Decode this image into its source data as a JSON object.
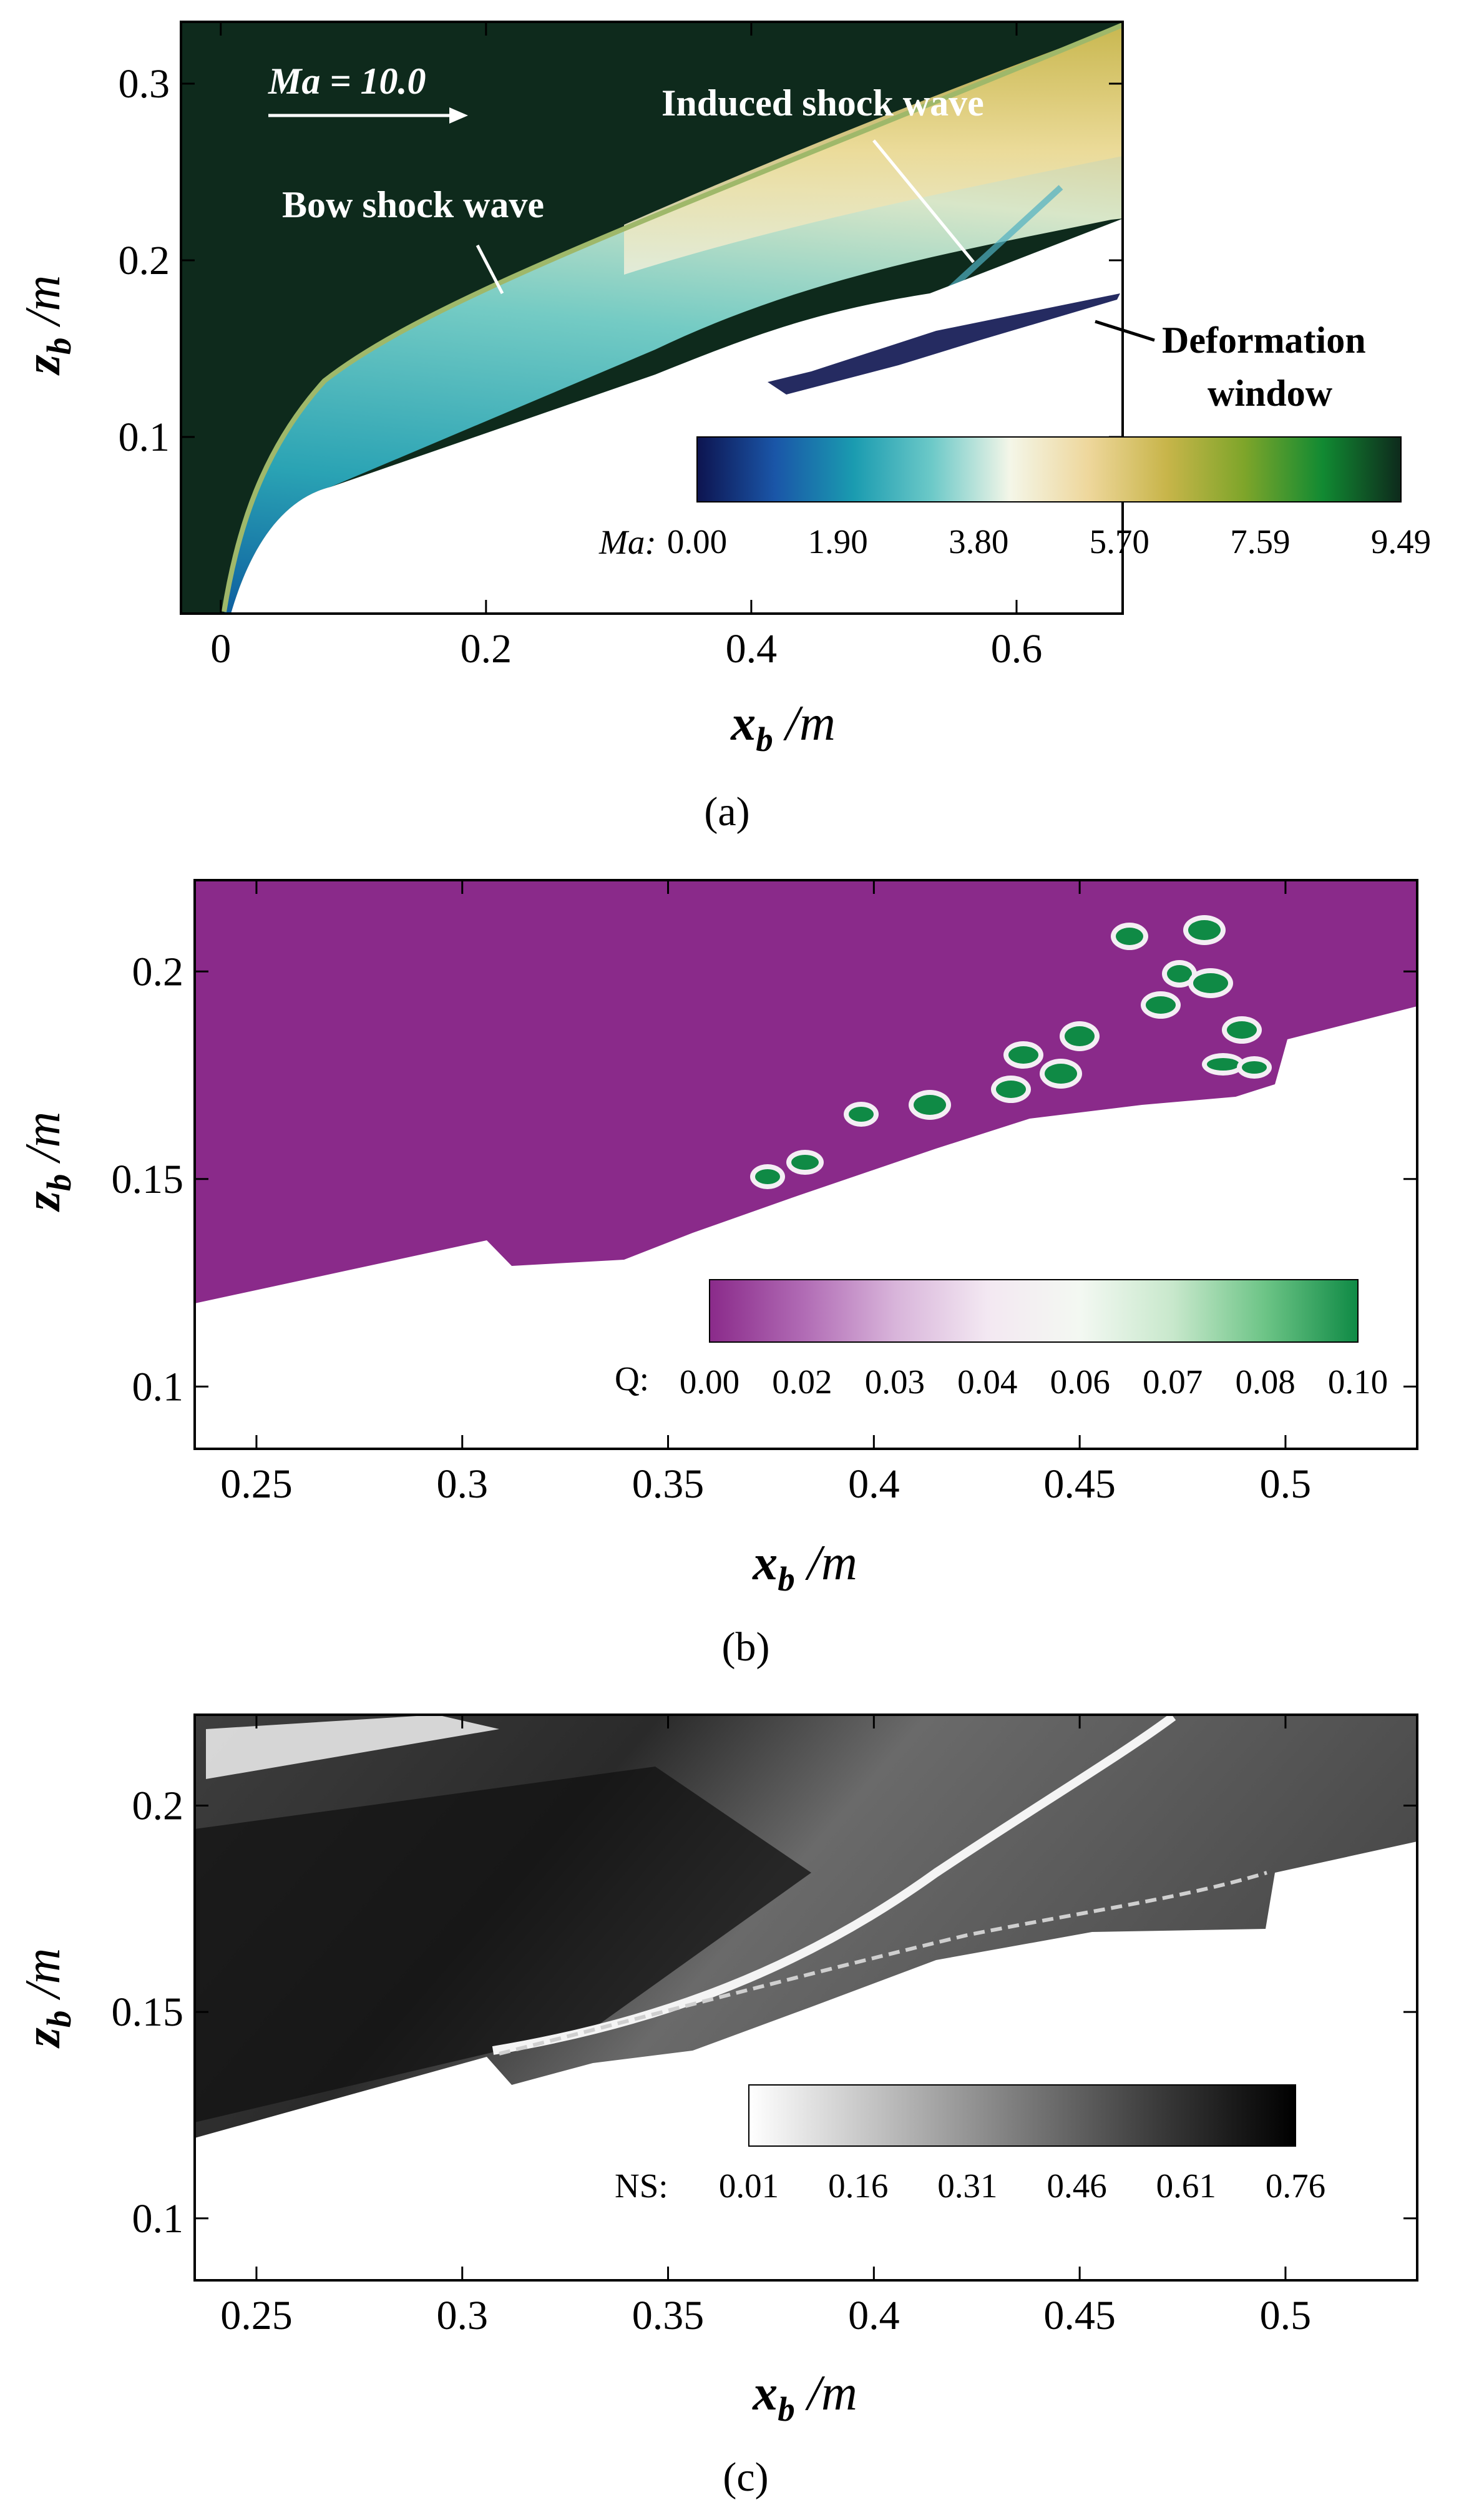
{
  "chart_data": [
    {
      "type": "heatmap",
      "panel_label": "(a)",
      "xlabel": "x",
      "xlabel_sub": "b",
      "xlabel_unit": " /m",
      "ylabel": "z",
      "ylabel_sub": "b",
      "ylabel_unit": " /m",
      "xlim": [
        -0.03,
        0.68
      ],
      "ylim": [
        0.0,
        0.335
      ],
      "xticks": [
        0,
        0.2,
        0.4,
        0.6
      ],
      "xtick_labels": [
        "0",
        "0.2",
        "0.4",
        "0.6"
      ],
      "yticks": [
        0.1,
        0.2,
        0.3
      ],
      "ytick_labels": [
        "0.1",
        "0.2",
        "0.3"
      ],
      "colorbar": {
        "variable": "Ma:",
        "ticks": [
          "0.00",
          "1.90",
          "3.80",
          "5.70",
          "7.59",
          "9.49"
        ],
        "colors": [
          "#0d1450",
          "#1a56a8",
          "#1a9bb0",
          "#6cc9c8",
          "#f4f6e8",
          "#eed79c",
          "#c8b54a",
          "#7ea52a",
          "#118a32",
          "#0e2a1c"
        ]
      },
      "annotations": [
        {
          "text": "Ma = 10.0",
          "x": 0.09,
          "y": 0.305
        },
        {
          "text": "Bow shock wave",
          "x": 0.14,
          "y": 0.225
        },
        {
          "text": "Induced shock wave",
          "x": 0.48,
          "y": 0.285
        },
        {
          "text": "Deformation",
          "x": 0.59,
          "y": 0.165
        },
        {
          "text": "window",
          "x": 0.59,
          "y": 0.13
        }
      ]
    },
    {
      "type": "heatmap",
      "panel_label": "(b)",
      "xlabel": "x",
      "xlabel_sub": "b",
      "xlabel_unit": " /m",
      "ylabel": "z",
      "ylabel_sub": "b",
      "ylabel_unit": " /m",
      "xlim": [
        0.235,
        0.532
      ],
      "ylim": [
        0.085,
        0.222
      ],
      "xticks": [
        0.25,
        0.3,
        0.35,
        0.4,
        0.45,
        0.5
      ],
      "xtick_labels": [
        "0.25",
        "0.3",
        "0.35",
        "0.4",
        "0.45",
        "0.5"
      ],
      "yticks": [
        0.1,
        0.15,
        0.2
      ],
      "ytick_labels": [
        "0.1",
        "0.15",
        "0.2"
      ],
      "colorbar": {
        "variable": "Q:",
        "ticks": [
          "0.00",
          "0.02",
          "0.03",
          "0.04",
          "0.06",
          "0.07",
          "0.08",
          "0.10"
        ],
        "colors": [
          "#8a2a8a",
          "#b06ab4",
          "#d8b4da",
          "#f3e8f2",
          "#f3f8f2",
          "#c8e8cc",
          "#6cc486",
          "#0f8a45"
        ]
      }
    },
    {
      "type": "heatmap",
      "panel_label": "(c)",
      "xlabel": "x",
      "xlabel_sub": "b",
      "xlabel_unit": " /m",
      "ylabel": "z",
      "ylabel_sub": "b",
      "ylabel_unit": " /m",
      "xlim": [
        0.235,
        0.532
      ],
      "ylim": [
        0.085,
        0.222
      ],
      "xticks": [
        0.25,
        0.3,
        0.35,
        0.4,
        0.45,
        0.5
      ],
      "xtick_labels": [
        "0.25",
        "0.3",
        "0.35",
        "0.4",
        "0.45",
        "0.5"
      ],
      "yticks": [
        0.1,
        0.15,
        0.2
      ],
      "ytick_labels": [
        "0.1",
        "0.15",
        "0.2"
      ],
      "colorbar": {
        "variable": "NS:",
        "ticks": [
          "0.01",
          "0.16",
          "0.31",
          "0.46",
          "0.61",
          "0.76"
        ],
        "colors": [
          "#ffffff",
          "#bdbdbd",
          "#7a7a7a",
          "#3a3a3a",
          "#000000"
        ]
      }
    }
  ]
}
